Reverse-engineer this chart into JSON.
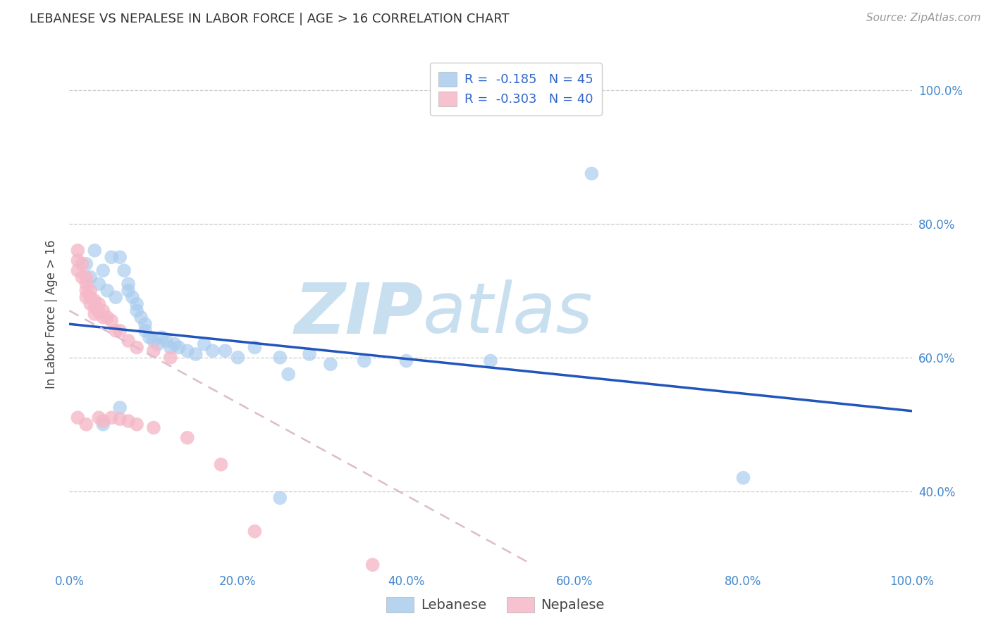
{
  "title": "LEBANESE VS NEPALESE IN LABOR FORCE | AGE > 16 CORRELATION CHART",
  "source": "Source: ZipAtlas.com",
  "ylabel": "In Labor Force | Age > 16",
  "xlim": [
    0.0,
    1.0
  ],
  "ylim": [
    0.28,
    1.05
  ],
  "xticks": [
    0.0,
    0.2,
    0.4,
    0.6,
    0.8,
    1.0
  ],
  "yticks": [
    0.4,
    0.6,
    0.8,
    1.0
  ],
  "xtick_labels": [
    "0.0%",
    "20.0%",
    "40.0%",
    "60.0%",
    "80.0%",
    "100.0%"
  ],
  "ytick_labels": [
    "40.0%",
    "60.0%",
    "80.0%",
    "100.0%"
  ],
  "background_color": "#ffffff",
  "grid_color": "#cccccc",
  "watermark_zip": "ZIP",
  "watermark_atlas": "atlas",
  "watermark_color": "#c8dff0",
  "legend_R_blue": "-0.185",
  "legend_N_blue": "45",
  "legend_R_pink": "-0.303",
  "legend_N_pink": "40",
  "blue_color": "#aaccee",
  "pink_color": "#f5b8c8",
  "trendline_blue_color": "#2255bb",
  "trendline_pink_color": "#ddbbcc",
  "tick_color": "#4488cc",
  "legend_text_color": "#3366cc",
  "title_fontsize": 13,
  "axis_label_fontsize": 12,
  "tick_fontsize": 12,
  "source_fontsize": 11,
  "legend_fontsize": 13,
  "blue_points": [
    [
      0.02,
      0.74
    ],
    [
      0.03,
      0.76
    ],
    [
      0.04,
      0.73
    ],
    [
      0.05,
      0.75
    ],
    [
      0.025,
      0.72
    ],
    [
      0.035,
      0.71
    ],
    [
      0.045,
      0.7
    ],
    [
      0.055,
      0.69
    ],
    [
      0.06,
      0.75
    ],
    [
      0.065,
      0.73
    ],
    [
      0.07,
      0.71
    ],
    [
      0.07,
      0.7
    ],
    [
      0.075,
      0.69
    ],
    [
      0.08,
      0.68
    ],
    [
      0.08,
      0.67
    ],
    [
      0.085,
      0.66
    ],
    [
      0.09,
      0.65
    ],
    [
      0.09,
      0.64
    ],
    [
      0.095,
      0.63
    ],
    [
      0.1,
      0.625
    ],
    [
      0.105,
      0.62
    ],
    [
      0.11,
      0.63
    ],
    [
      0.115,
      0.625
    ],
    [
      0.12,
      0.615
    ],
    [
      0.125,
      0.62
    ],
    [
      0.13,
      0.615
    ],
    [
      0.14,
      0.61
    ],
    [
      0.15,
      0.605
    ],
    [
      0.16,
      0.62
    ],
    [
      0.17,
      0.61
    ],
    [
      0.185,
      0.61
    ],
    [
      0.2,
      0.6
    ],
    [
      0.22,
      0.615
    ],
    [
      0.25,
      0.6
    ],
    [
      0.26,
      0.575
    ],
    [
      0.285,
      0.605
    ],
    [
      0.31,
      0.59
    ],
    [
      0.35,
      0.595
    ],
    [
      0.4,
      0.595
    ],
    [
      0.5,
      0.595
    ],
    [
      0.62,
      0.875
    ],
    [
      0.8,
      0.42
    ],
    [
      0.04,
      0.5
    ],
    [
      0.06,
      0.525
    ],
    [
      0.25,
      0.39
    ]
  ],
  "pink_points": [
    [
      0.01,
      0.76
    ],
    [
      0.01,
      0.745
    ],
    [
      0.01,
      0.73
    ],
    [
      0.015,
      0.74
    ],
    [
      0.015,
      0.72
    ],
    [
      0.02,
      0.72
    ],
    [
      0.02,
      0.71
    ],
    [
      0.02,
      0.7
    ],
    [
      0.02,
      0.69
    ],
    [
      0.025,
      0.7
    ],
    [
      0.025,
      0.69
    ],
    [
      0.025,
      0.68
    ],
    [
      0.03,
      0.685
    ],
    [
      0.03,
      0.675
    ],
    [
      0.03,
      0.665
    ],
    [
      0.035,
      0.68
    ],
    [
      0.035,
      0.668
    ],
    [
      0.04,
      0.67
    ],
    [
      0.04,
      0.66
    ],
    [
      0.045,
      0.66
    ],
    [
      0.05,
      0.655
    ],
    [
      0.055,
      0.64
    ],
    [
      0.06,
      0.64
    ],
    [
      0.07,
      0.625
    ],
    [
      0.08,
      0.615
    ],
    [
      0.1,
      0.61
    ],
    [
      0.12,
      0.6
    ],
    [
      0.01,
      0.51
    ],
    [
      0.02,
      0.5
    ],
    [
      0.035,
      0.51
    ],
    [
      0.04,
      0.505
    ],
    [
      0.05,
      0.51
    ],
    [
      0.06,
      0.508
    ],
    [
      0.07,
      0.505
    ],
    [
      0.08,
      0.5
    ],
    [
      0.1,
      0.495
    ],
    [
      0.14,
      0.48
    ],
    [
      0.18,
      0.44
    ],
    [
      0.22,
      0.34
    ],
    [
      0.36,
      0.29
    ]
  ],
  "blue_trend_x": [
    0.0,
    1.0
  ],
  "blue_trend_y_start": 0.65,
  "blue_trend_y_end": 0.52,
  "pink_trend_x": [
    0.0,
    0.55
  ],
  "pink_trend_y_start": 0.67,
  "pink_trend_y_end": 0.29
}
